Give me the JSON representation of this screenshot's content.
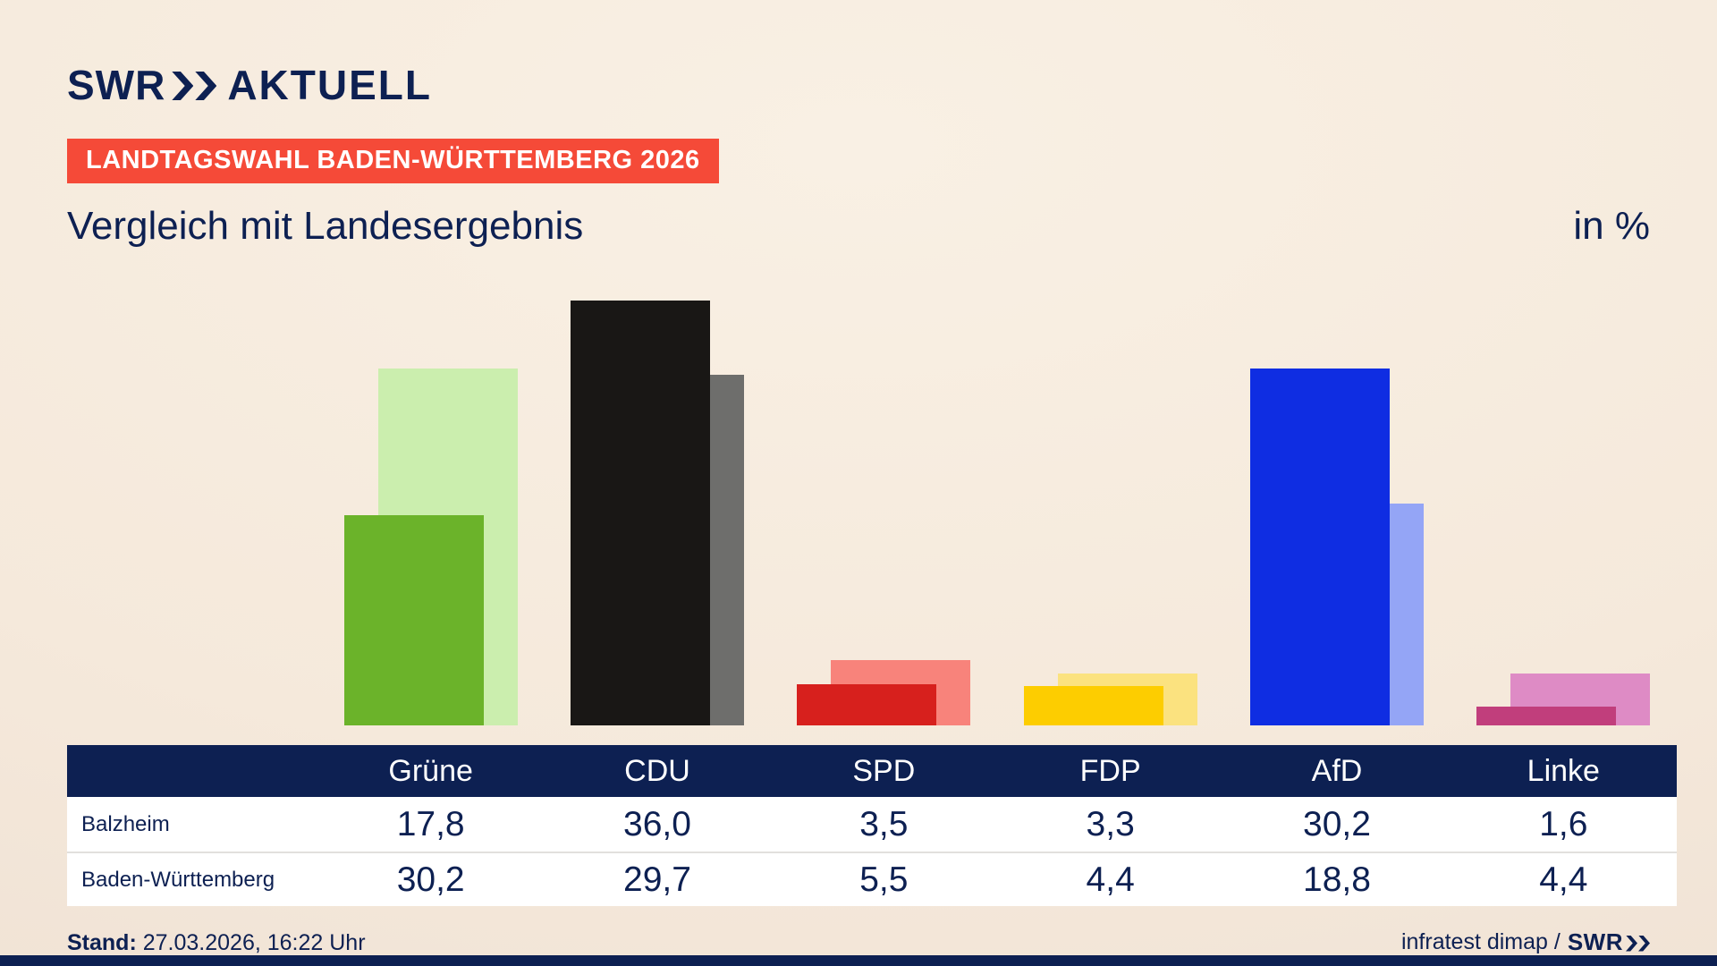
{
  "header": {
    "logo": {
      "swr": "SWR",
      "aktuell": "AKTUELL"
    },
    "badge": "LANDTAGSWAHL BADEN-WÜRTTEMBERG 2026",
    "title": "Vergleich mit Landesergebnis",
    "unit_label": "in %"
  },
  "chart_data": {
    "type": "bar",
    "categories": [
      "Grüne",
      "CDU",
      "SPD",
      "FDP",
      "AfD",
      "Linke"
    ],
    "series": [
      {
        "name": "Balzheim",
        "values": [
          17.8,
          36.0,
          3.5,
          3.3,
          30.2,
          1.6
        ]
      },
      {
        "name": "Baden-Württemberg",
        "values": [
          30.2,
          29.7,
          5.5,
          4.4,
          18.8,
          4.4
        ]
      }
    ],
    "colors": {
      "main": [
        "#6bb32a",
        "#191715",
        "#d7201d",
        "#fdcd00",
        "#0f2de2",
        "#c13e7c"
      ],
      "state": [
        "#cbeeae",
        "#6e6e6c",
        "#f8837b",
        "#fbe27f",
        "#94a5f6",
        "#de8bc5"
      ]
    },
    "ylim": [
      0,
      38
    ],
    "legend_position": "table-below",
    "grid": false
  },
  "table": {
    "rows": [
      {
        "label": "Balzheim",
        "values": [
          "17,8",
          "36,0",
          "3,5",
          "3,3",
          "30,2",
          "1,6"
        ]
      },
      {
        "label": "Baden-Württemberg",
        "values": [
          "30,2",
          "29,7",
          "5,5",
          "4,4",
          "18,8",
          "4,4"
        ]
      }
    ]
  },
  "footer": {
    "stand_label": "Stand:",
    "stand_value": " 27.03.2026, 16:22 Uhr",
    "source_text": "infratest dimap /",
    "source_logo": "SWR"
  },
  "theme": {
    "navy": "#0d2052",
    "badge_red": "#f54a38",
    "background": "#f6ecdf"
  }
}
